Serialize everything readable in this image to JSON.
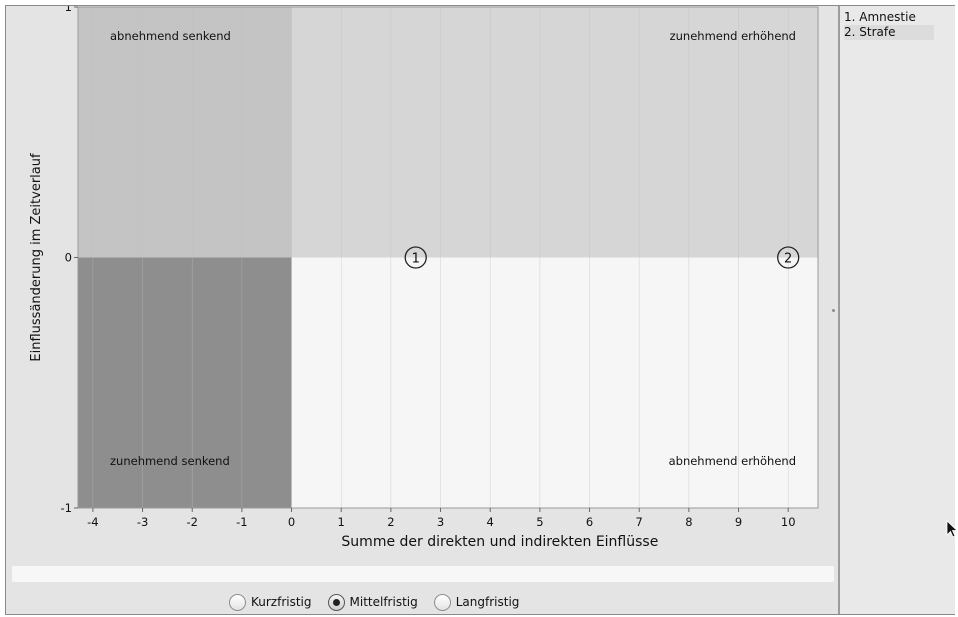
{
  "chart_data": {
    "type": "scatter",
    "xlabel": "Summe der direkten und indirekten Einflüsse",
    "ylabel": "Einflussänderung im Zeitverlauf",
    "xlim": [
      -4.3,
      10.6
    ],
    "ylim": [
      -1,
      1
    ],
    "x_ticks": [
      "-4",
      "-3",
      "-2",
      "-1",
      "0",
      "1",
      "2",
      "3",
      "4",
      "5",
      "6",
      "7",
      "8",
      "9",
      "10"
    ],
    "y_ticks": [
      "1",
      "0",
      "-1"
    ],
    "grid": "vertical",
    "quadrants": [
      {
        "name": "abnehmend senkend",
        "x_range": [
          -4.3,
          0
        ],
        "y_range": [
          0,
          1
        ],
        "color": "#c4c4c4"
      },
      {
        "name": "zunehmend erhöhend",
        "x_range": [
          0,
          10.6
        ],
        "y_range": [
          0,
          1
        ],
        "color": "#d6d6d6"
      },
      {
        "name": "zunehmend senkend",
        "x_range": [
          -4.3,
          0
        ],
        "y_range": [
          -1,
          0
        ],
        "color": "#8e8e8e"
      },
      {
        "name": "abnehmend erhöhend",
        "x_range": [
          0,
          10.6
        ],
        "y_range": [
          -1,
          0
        ],
        "color": "#f6f6f6"
      }
    ],
    "points": [
      {
        "label": "1",
        "x": 2.5,
        "y": 0.0
      },
      {
        "label": "2",
        "x": 10.0,
        "y": 0.0
      }
    ]
  },
  "legend": {
    "items": [
      "1. Amnestie",
      "2. Strafe"
    ]
  },
  "options": {
    "items": [
      {
        "label": "Kurzfristig",
        "checked": false
      },
      {
        "label": "Mittelfristig",
        "checked": true
      },
      {
        "label": "Langfristig",
        "checked": false
      }
    ]
  }
}
